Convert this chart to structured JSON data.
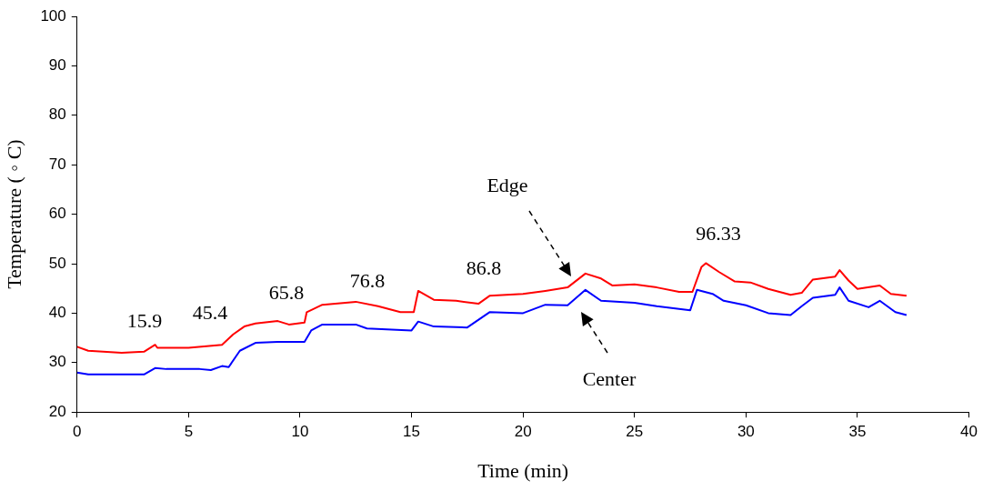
{
  "chart_data": {
    "type": "line",
    "xlabel": "Time (min)",
    "ylabel": "Temperature ( ◦ C)",
    "xlim": [
      0,
      40
    ],
    "xticks": [
      0,
      5,
      10,
      15,
      20,
      25,
      30,
      35,
      40
    ],
    "ylim": [
      20,
      100
    ],
    "yticks": [
      20,
      30,
      40,
      50,
      60,
      70,
      80,
      90,
      100
    ],
    "grid": false,
    "legend": false,
    "marker": "none",
    "line_style": "solid",
    "series": [
      {
        "color": "#ff0000",
        "x": [
          0,
          0.5,
          2,
          3,
          3.5,
          3.6,
          5,
          6.5,
          7,
          7.5,
          8,
          9,
          9.5,
          10.2,
          10.3,
          11,
          12.5,
          13.5,
          14.5,
          15.1,
          15.3,
          16,
          17,
          18,
          18.5,
          20,
          21,
          22,
          22.8,
          23.5,
          24,
          25,
          26,
          27,
          27.6,
          28,
          28.2,
          28.8,
          29.5,
          30.2,
          31,
          32,
          32.5,
          33,
          34,
          34.2,
          34.6,
          35,
          36,
          36.5,
          37.2
        ],
        "values": [
          33.2,
          32.4,
          32.0,
          32.2,
          33.6,
          33.0,
          33.0,
          33.6,
          35.7,
          37.3,
          37.9,
          38.4,
          37.7,
          38.1,
          40.2,
          41.7,
          42.3,
          41.4,
          40.2,
          40.2,
          44.5,
          42.7,
          42.5,
          41.9,
          43.5,
          43.9,
          44.5,
          45.2,
          48.0,
          47.0,
          45.6,
          45.8,
          45.2,
          44.3,
          44.3,
          49.3,
          50.1,
          48.3,
          46.4,
          46.2,
          44.9,
          43.7,
          44.1,
          46.8,
          47.4,
          48.7,
          46.6,
          44.9,
          45.6,
          43.9,
          43.5
        ]
      },
      {
        "color": "#0000ff",
        "x": [
          0,
          0.5,
          2,
          3,
          3.5,
          4,
          5.5,
          6,
          6.5,
          6.8,
          7.3,
          8,
          9,
          10.2,
          10.5,
          11,
          12.5,
          13,
          15,
          15.3,
          16,
          17.5,
          18.5,
          20,
          21,
          22,
          22.8,
          23.5,
          25,
          26,
          27.5,
          27.8,
          28.5,
          29,
          30,
          31,
          32,
          32.5,
          33,
          34,
          34.2,
          34.6,
          35.5,
          36,
          36.7,
          37.2
        ],
        "values": [
          28.0,
          27.6,
          27.6,
          27.6,
          28.9,
          28.7,
          28.7,
          28.5,
          29.3,
          29.1,
          32.4,
          34.0,
          34.2,
          34.2,
          36.5,
          37.7,
          37.7,
          36.9,
          36.5,
          38.3,
          37.3,
          37.1,
          40.2,
          40.0,
          41.7,
          41.6,
          44.7,
          42.5,
          42.1,
          41.4,
          40.6,
          44.7,
          43.9,
          42.5,
          41.6,
          40.0,
          39.6,
          41.4,
          43.1,
          43.7,
          45.2,
          42.5,
          41.2,
          42.5,
          40.2,
          39.6
        ]
      }
    ],
    "annotations": [
      "15.9",
      "45.4",
      "65.8",
      "76.8",
      "86.8",
      "96.33",
      "Edge",
      "Center"
    ]
  }
}
